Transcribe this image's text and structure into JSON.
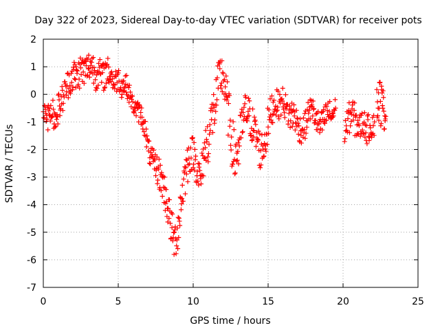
{
  "chart_data": {
    "type": "scatter",
    "title": "Day 322 of 2023, Sidereal Day-to-day VTEC variation (SDTVAR) for receiver pots",
    "xlabel": "GPS time / hours",
    "ylabel": "SDTVAR / TECUs",
    "xlim": [
      0,
      25
    ],
    "ylim": [
      -7,
      2
    ],
    "xticks": [
      0,
      5,
      10,
      15,
      20,
      25
    ],
    "yticks": [
      -7,
      -6,
      -5,
      -4,
      -3,
      -2,
      -1,
      0,
      1,
      2
    ],
    "grid": true,
    "marker": "+",
    "series": [
      {
        "name": "SDTVAR",
        "color": "#ff0000",
        "segments": [
          {
            "x": [
              0.0,
              0.25,
              0.5,
              0.75,
              1.0,
              1.25,
              1.5,
              1.75,
              2.0,
              2.25,
              2.5,
              2.75,
              3.0,
              3.25,
              3.5,
              3.75,
              4.0,
              4.25,
              4.5,
              4.75,
              5.0,
              5.25,
              5.5,
              5.75,
              6.0,
              6.25,
              6.5,
              6.75,
              7.0,
              7.25,
              7.5,
              7.75,
              8.0,
              8.25,
              8.5,
              8.75,
              9.0,
              9.25,
              9.5,
              9.75,
              10.0,
              10.25,
              10.5,
              10.75,
              11.0,
              11.25,
              11.5,
              11.75,
              12.0,
              12.25,
              12.5,
              12.75,
              13.0,
              13.25,
              13.5,
              13.75,
              14.0,
              14.25,
              14.5,
              14.75,
              15.0,
              15.25,
              15.5,
              15.75,
              16.0,
              16.25,
              16.5,
              16.75,
              17.0,
              17.25,
              17.5,
              17.75,
              18.0,
              18.25,
              18.5,
              18.75,
              19.0,
              19.25,
              19.5
            ],
            "y": [
              -0.6,
              -1.0,
              -0.4,
              -0.9,
              -0.5,
              -0.2,
              0.2,
              0.5,
              0.7,
              0.6,
              0.9,
              0.8,
              1.0,
              1.1,
              0.7,
              0.8,
              0.6,
              0.9,
              0.7,
              0.4,
              0.6,
              0.3,
              0.4,
              0.0,
              -0.4,
              -0.6,
              -0.7,
              -1.1,
              -2.0,
              -2.4,
              -2.6,
              -2.9,
              -3.3,
              -3.9,
              -4.7,
              -5.4,
              -4.8,
              -3.6,
              -2.8,
              -2.2,
              -2.1,
              -2.6,
              -3.2,
              -2.0,
              -1.6,
              -0.9,
              -0.3,
              0.6,
              0.7,
              -0.3,
              -1.3,
              -2.3,
              -2.0,
              -1.2,
              -0.6,
              -0.8,
              -1.2,
              -1.6,
              -2.1,
              -1.8,
              -1.1,
              -0.5,
              -0.3,
              -0.4,
              -0.2,
              -0.6,
              -0.8,
              -0.7,
              -1.2,
              -1.3,
              -1.1,
              -0.5,
              -0.6,
              -1.0,
              -1.2,
              -0.9,
              -0.6,
              -0.8,
              -0.5
            ],
            "spread": [
              0.45,
              0.55,
              0.5,
              0.45,
              0.55,
              0.55,
              0.5,
              0.55,
              0.6,
              0.6,
              0.6,
              0.6,
              0.55,
              0.55,
              0.55,
              0.5,
              0.55,
              0.5,
              0.45,
              0.45,
              0.45,
              0.45,
              0.4,
              0.35,
              0.3,
              0.35,
              0.4,
              0.4,
              0.4,
              0.45,
              0.5,
              0.6,
              0.6,
              0.7,
              0.7,
              0.7,
              0.8,
              0.8,
              0.8,
              0.7,
              0.6,
              0.7,
              0.7,
              0.8,
              0.9,
              0.9,
              0.9,
              0.8,
              0.8,
              0.9,
              1.0,
              1.0,
              0.9,
              0.8,
              0.7,
              0.7,
              0.7,
              0.7,
              0.7,
              0.7,
              0.7,
              0.6,
              0.5,
              0.5,
              0.5,
              0.5,
              0.6,
              0.6,
              0.5,
              0.5,
              0.5,
              0.4,
              0.45,
              0.5,
              0.5,
              0.5,
              0.5,
              0.45,
              0.4
            ]
          },
          {
            "x": [
              20.1,
              20.35,
              20.6,
              20.85,
              21.1,
              21.35,
              21.6,
              21.85,
              22.1
            ],
            "y": [
              -1.3,
              -0.9,
              -0.7,
              -1.0,
              -1.2,
              -1.0,
              -1.3,
              -1.1,
              -1.0
            ],
            "spread": [
              0.5,
              0.55,
              0.6,
              0.6,
              0.5,
              0.5,
              0.5,
              0.55,
              0.5
            ]
          },
          {
            "x": [
              22.25,
              22.45,
              22.65,
              22.85
            ],
            "y": [
              -0.4,
              -0.2,
              -0.5,
              -0.8
            ],
            "spread": [
              0.7,
              0.9,
              0.8,
              0.5
            ]
          }
        ]
      }
    ]
  }
}
